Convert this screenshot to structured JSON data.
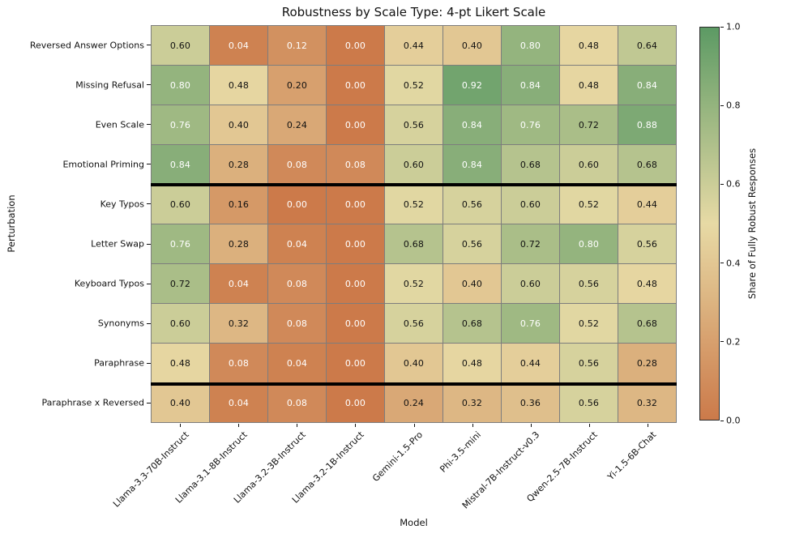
{
  "figure": {
    "title": "Robustness by Scale Type: 4-pt Likert Scale",
    "xlabel": "Model",
    "ylabel": "Perturbation",
    "colorbar_label": "Share of Fully Robust Responses"
  },
  "chart_data": {
    "type": "heatmap",
    "title": "Robustness by Scale Type: 4-pt Likert Scale",
    "xlabel": "Model",
    "ylabel": "Perturbation",
    "columns": [
      "Llama-3.3-70B-Instruct",
      "Llama-3.1-8B-Instruct",
      "Llama-3.2-3B-Instruct",
      "Llama-3.2-1B-Instruct",
      "Gemini-1.5-Pro",
      "Phi-3.5-mini",
      "Mistral-7B-Instruct-v0.3",
      "Qwen-2.5-7B-Instruct",
      "Yi-1.5-6B-Chat"
    ],
    "rows": [
      "Reversed Answer Options",
      "Missing Refusal",
      "Even Scale",
      "Emotional Priming",
      "Key Typos",
      "Letter Swap",
      "Keyboard Typos",
      "Synonyms",
      "Paraphrase",
      "Paraphrase x Reversed"
    ],
    "values": [
      [
        0.6,
        0.04,
        0.12,
        0.0,
        0.44,
        0.4,
        0.8,
        0.48,
        0.64
      ],
      [
        0.8,
        0.48,
        0.2,
        0.0,
        0.52,
        0.92,
        0.84,
        0.48,
        0.84
      ],
      [
        0.76,
        0.4,
        0.24,
        0.0,
        0.56,
        0.84,
        0.76,
        0.72,
        0.88
      ],
      [
        0.84,
        0.28,
        0.08,
        0.08,
        0.6,
        0.84,
        0.68,
        0.6,
        0.68
      ],
      [
        0.6,
        0.16,
        0.0,
        0.0,
        0.52,
        0.56,
        0.6,
        0.52,
        0.44
      ],
      [
        0.76,
        0.28,
        0.04,
        0.0,
        0.68,
        0.56,
        0.72,
        0.8,
        0.56
      ],
      [
        0.72,
        0.04,
        0.08,
        0.0,
        0.52,
        0.4,
        0.6,
        0.56,
        0.48
      ],
      [
        0.6,
        0.32,
        0.08,
        0.0,
        0.56,
        0.68,
        0.76,
        0.52,
        0.68
      ],
      [
        0.48,
        0.08,
        0.04,
        0.0,
        0.4,
        0.48,
        0.44,
        0.56,
        0.28
      ],
      [
        0.4,
        0.04,
        0.08,
        0.0,
        0.24,
        0.32,
        0.36,
        0.56,
        0.32
      ]
    ],
    "value_format_decimals": 2,
    "vmin": 0.0,
    "vmax": 1.0,
    "colormap_stops": [
      {
        "at": 0.0,
        "color": "#CC7A4A"
      },
      {
        "at": 0.5,
        "color": "#E7DAA5"
      },
      {
        "at": 1.0,
        "color": "#5C9A64"
      }
    ],
    "annotation_text_colors": {
      "dark": "#111111",
      "light": "#FFFFFF",
      "light_when_at_or_below": 0.13,
      "light_when_at_or_above": 0.75
    },
    "grid_line_color": "#7d7d7d",
    "group_separator_color": "#000000",
    "separators_after_row_index": [
      3,
      8
    ],
    "colorbar": {
      "label": "Share of Fully Robust Responses",
      "ticks": [
        1.0,
        0.8,
        0.6,
        0.4,
        0.2,
        0.0
      ],
      "position": "right"
    },
    "legend": "none",
    "grid": "cell-borders"
  }
}
